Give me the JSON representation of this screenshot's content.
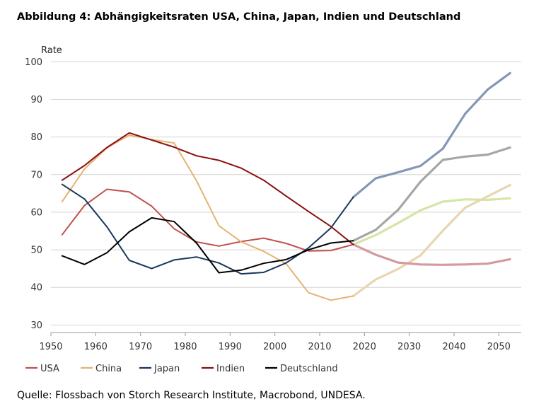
{
  "title": "Abbildung 4: Abhängigkeitsraten USA, China, Japan, Indien und Deutschland",
  "source": "Quelle: Flossbach von Storch Research Institute, Macrobond, UNDESA.",
  "chart_data": {
    "type": "line",
    "title": "Abbildung 4: Abhängigkeitsraten USA, China, Japan, Indien und Deutschland",
    "ylabel": "Rate",
    "xlabel": "",
    "xlim": [
      1950,
      2055
    ],
    "ylim": [
      28,
      101
    ],
    "xticks": [
      1950,
      1960,
      1970,
      1980,
      1990,
      2000,
      2010,
      2020,
      2030,
      2040,
      2050
    ],
    "yticks": [
      30,
      40,
      50,
      60,
      70,
      80,
      90,
      100
    ],
    "grid": "horizontal",
    "legend_position": "bottom",
    "projection_start": 2017.5,
    "series": [
      {
        "name": "USA",
        "color": "#c0504d",
        "projection_color": "#d4e6a5",
        "x": [
          1952.5,
          1957.5,
          1962.5,
          1967.5,
          1972.5,
          1977.5,
          1982.5,
          1987.5,
          1992.5,
          1997.5,
          2002.5,
          2007.5,
          2012.5,
          2017.5,
          2022.5,
          2027.5,
          2032.5,
          2037.5,
          2042.5,
          2047.5,
          2052.5
        ],
        "values": [
          54,
          61.8,
          66.1,
          65.4,
          61.6,
          55.6,
          52.1,
          51,
          52.2,
          53.1,
          51.7,
          49.7,
          49.8,
          51.4,
          53.9,
          57.1,
          60.5,
          62.8,
          63.4,
          63.3,
          63.7
        ]
      },
      {
        "name": "China",
        "color": "#e6b273",
        "projection_color": "#e8d5b2",
        "x": [
          1952.5,
          1957.5,
          1962.5,
          1967.5,
          1972.5,
          1977.5,
          1982.5,
          1987.5,
          1992.5,
          1997.5,
          2002.5,
          2007.5,
          2012.5,
          2017.5,
          2022.5,
          2027.5,
          2032.5,
          2037.5,
          2042.5,
          2047.5,
          2052.5
        ],
        "values": [
          62.8,
          71.5,
          77.1,
          80.5,
          79.3,
          78.4,
          68.4,
          56.4,
          52.1,
          49.6,
          46.3,
          38.6,
          36.6,
          37.7,
          42.1,
          44.9,
          48.5,
          55.1,
          61.2,
          64.2,
          67.2
        ]
      },
      {
        "name": "Japan",
        "color": "#17375e",
        "projection_color": "#8497b5",
        "x": [
          1952.5,
          1957.5,
          1962.5,
          1967.5,
          1972.5,
          1977.5,
          1982.5,
          1987.5,
          1992.5,
          1997.5,
          2002.5,
          2007.5,
          2012.5,
          2017.5,
          2022.5,
          2027.5,
          2032.5,
          2037.5,
          2042.5,
          2047.5,
          2052.5
        ],
        "values": [
          67.4,
          63.5,
          56.1,
          47.2,
          45,
          47.3,
          48.1,
          46.5,
          43.6,
          44,
          46.5,
          50.5,
          55.8,
          64,
          69,
          70.6,
          72.3,
          76.9,
          86.2,
          92.6,
          97
        ]
      },
      {
        "name": "Indien",
        "color": "#8b0f0f",
        "projection_color": "#d49a9e",
        "x": [
          1952.5,
          1957.5,
          1962.5,
          1967.5,
          1972.5,
          1977.5,
          1982.5,
          1987.5,
          1992.5,
          1997.5,
          2002.5,
          2007.5,
          2012.5,
          2017.5,
          2022.5,
          2027.5,
          2032.5,
          2037.5,
          2042.5,
          2047.5,
          2052.5
        ],
        "values": [
          68.5,
          72.4,
          77.2,
          81.1,
          79.2,
          77.3,
          75,
          73.8,
          71.7,
          68.5,
          64.3,
          60.2,
          56.2,
          51.4,
          48.7,
          46.6,
          46.1,
          46,
          46.1,
          46.3,
          47.5
        ]
      },
      {
        "name": "Deutschland",
        "color": "#000000",
        "projection_color": "#a6a6a6",
        "x": [
          1952.5,
          1957.5,
          1962.5,
          1967.5,
          1972.5,
          1977.5,
          1982.5,
          1987.5,
          1992.5,
          1997.5,
          2002.5,
          2007.5,
          2012.5,
          2017.5,
          2022.5,
          2027.5,
          2032.5,
          2037.5,
          2042.5,
          2047.5,
          2052.5
        ],
        "values": [
          48.4,
          46.1,
          49.2,
          54.8,
          58.5,
          57.5,
          51.8,
          43.9,
          44.6,
          46.4,
          47.4,
          50,
          51.8,
          52.4,
          55.3,
          60.6,
          68.1,
          73.9,
          74.8,
          75.3,
          77.2
        ]
      }
    ]
  }
}
